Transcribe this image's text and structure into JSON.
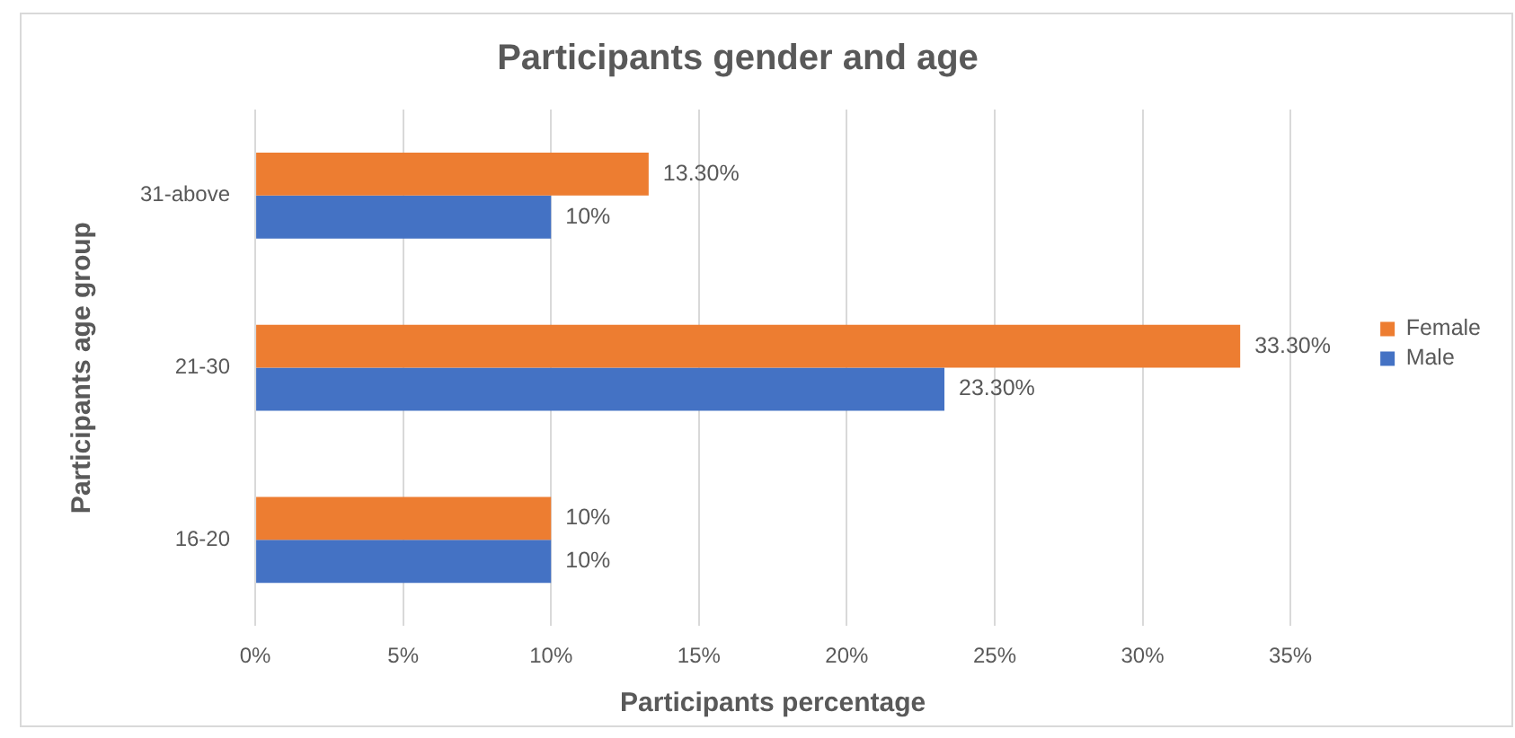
{
  "chart_data": {
    "type": "bar",
    "orientation": "horizontal",
    "title": "Participants gender and age",
    "xlabel": "Participants percentage",
    "ylabel": "Participants age group",
    "categories": [
      "31-above",
      "21-30",
      "16-20"
    ],
    "series": [
      {
        "name": "Female",
        "color": "#ed7d31",
        "values": [
          13.3,
          33.3,
          10
        ],
        "value_labels": [
          "13.30%",
          "33.30%",
          "10%"
        ]
      },
      {
        "name": "Male",
        "color": "#4472c4",
        "values": [
          10,
          23.3,
          10
        ],
        "value_labels": [
          "10%",
          "23.30%",
          "10%"
        ]
      }
    ],
    "xlim": [
      0,
      35
    ],
    "xticks": [
      {
        "value": 0,
        "label": "0%"
      },
      {
        "value": 5,
        "label": "5%"
      },
      {
        "value": 10,
        "label": "10%"
      },
      {
        "value": 15,
        "label": "15%"
      },
      {
        "value": 20,
        "label": "20%"
      },
      {
        "value": 25,
        "label": "25%"
      },
      {
        "value": 30,
        "label": "30%"
      },
      {
        "value": 35,
        "label": "35%"
      }
    ],
    "grid": "x",
    "legend": "right"
  }
}
